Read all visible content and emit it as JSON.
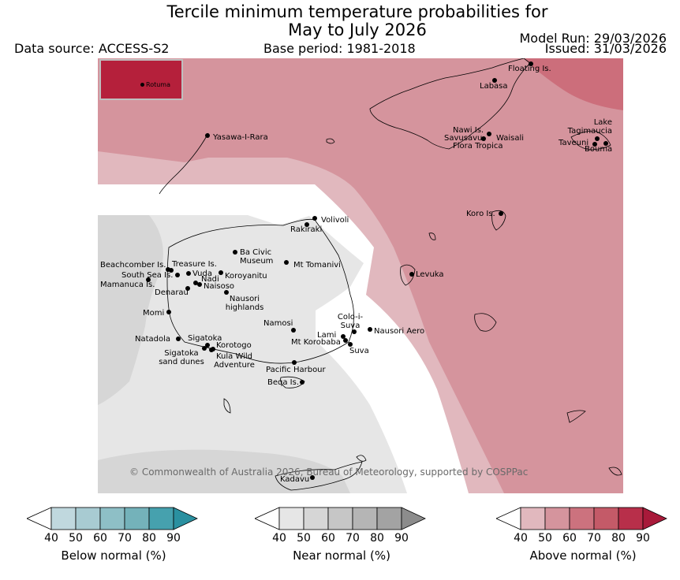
{
  "title_line1": "Tercile minimum temperature probabilities for",
  "title_line2": "May to July 2026",
  "data_source": "Data source: ACCESS-S2",
  "base_period": "Base period: 1981-2018",
  "model_run": "Model Run: 29/03/2026",
  "issued": "Issued: 31/03/2026",
  "copyright": "© Commonwealth of Australia 2026, Bureau of Meteorology, supported by COSPPac",
  "inset": {
    "label": "Rotuma",
    "color": "#b5203b"
  },
  "places": [
    {
      "name": "Floating Is."
    },
    {
      "name": "Labasa"
    },
    {
      "name": "Yasawa-I-Rara"
    },
    {
      "name": "Nawi Is."
    },
    {
      "name": "Savusavu"
    },
    {
      "name": "Waisali"
    },
    {
      "name": "Flora Tropica"
    },
    {
      "name": "Lake Tagimaucia"
    },
    {
      "name": "Taveuni"
    },
    {
      "name": "Bouma"
    },
    {
      "name": "Volivoli"
    },
    {
      "name": "Rakiraki"
    },
    {
      "name": "Koro Is."
    },
    {
      "name": "Ba Civic Museum"
    },
    {
      "name": "Mt Tomanivi"
    },
    {
      "name": "Beachcomber Is."
    },
    {
      "name": "Treasure Is."
    },
    {
      "name": "South Sea Is."
    },
    {
      "name": "Vuda"
    },
    {
      "name": "Koroyanitu"
    },
    {
      "name": "Mamanuca Is."
    },
    {
      "name": "Nadi"
    },
    {
      "name": "Naisoso"
    },
    {
      "name": "Denarau"
    },
    {
      "name": "Levuka"
    },
    {
      "name": "Nausori highlands"
    },
    {
      "name": "Momi"
    },
    {
      "name": "Namosi"
    },
    {
      "name": "Colo-i-Suva"
    },
    {
      "name": "Nausori Aero"
    },
    {
      "name": "Lami"
    },
    {
      "name": "Natadola"
    },
    {
      "name": "Sigatoka"
    },
    {
      "name": "Mt Korobaba"
    },
    {
      "name": "Korotogo"
    },
    {
      "name": "Suva"
    },
    {
      "name": "Sigatoka sand dunes"
    },
    {
      "name": "Kula Wild Adventure"
    },
    {
      "name": "Pacific Harbour"
    },
    {
      "name": "Beqa Is."
    },
    {
      "name": "Kadavu"
    }
  ],
  "legends": [
    {
      "title": "Below normal (%)",
      "ticks": [
        "40",
        "50",
        "60",
        "70",
        "80",
        "90"
      ],
      "colors": [
        "#c0d8de",
        "#a8cbd2",
        "#8ebfc6",
        "#74b2ba",
        "#46a1ae"
      ],
      "end_color": "#2a90a0"
    },
    {
      "title": "Near normal (%)",
      "ticks": [
        "40",
        "50",
        "60",
        "70",
        "80",
        "90"
      ],
      "colors": [
        "#e6e6e6",
        "#d6d6d6",
        "#c6c6c6",
        "#b5b5b5",
        "#a3a3a3"
      ],
      "end_color": "#8c8c8c"
    },
    {
      "title": "Above normal (%)",
      "ticks": [
        "40",
        "50",
        "60",
        "70",
        "80",
        "90"
      ],
      "colors": [
        "#e1b8be",
        "#d5949d",
        "#cc727e",
        "#c45a68",
        "#b82f4a"
      ],
      "end_color": "#a81a3a"
    }
  ]
}
